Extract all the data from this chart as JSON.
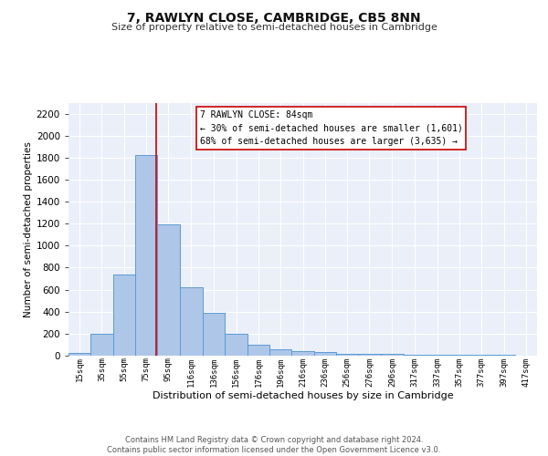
{
  "title": "7, RAWLYN CLOSE, CAMBRIDGE, CB5 8NN",
  "subtitle": "Size of property relative to semi-detached houses in Cambridge",
  "xlabel": "Distribution of semi-detached houses by size in Cambridge",
  "ylabel": "Number of semi-detached properties",
  "bar_labels": [
    "15sqm",
    "35sqm",
    "55sqm",
    "75sqm",
    "95sqm",
    "116sqm",
    "136sqm",
    "156sqm",
    "176sqm",
    "196sqm",
    "216sqm",
    "236sqm",
    "256sqm",
    "276sqm",
    "296sqm",
    "317sqm",
    "337sqm",
    "357sqm",
    "377sqm",
    "397sqm",
    "417sqm"
  ],
  "bar_values": [
    25,
    195,
    740,
    1820,
    1195,
    625,
    390,
    200,
    100,
    60,
    40,
    30,
    20,
    15,
    15,
    10,
    10,
    10,
    5,
    5,
    0
  ],
  "bar_color": "#aec6e8",
  "bar_edge_color": "#5b9bd5",
  "background_color": "#eaeff9",
  "grid_color": "#ffffff",
  "annotation_text": "7 RAWLYN CLOSE: 84sqm\n← 30% of semi-detached houses are smaller (1,601)\n68% of semi-detached houses are larger (3,635) →",
  "annotation_box_color": "#ffffff",
  "annotation_box_edge": "#cc0000",
  "vline_x": 84,
  "vline_color": "#cc0000",
  "ylim": [
    0,
    2300
  ],
  "yticks": [
    0,
    200,
    400,
    600,
    800,
    1000,
    1200,
    1400,
    1600,
    1800,
    2000,
    2200
  ],
  "footer": "Contains HM Land Registry data © Crown copyright and database right 2024.\nContains public sector information licensed under the Open Government Licence v3.0.",
  "bin_edges": [
    5,
    25,
    45,
    65,
    85,
    105,
    126,
    146,
    166,
    186,
    206,
    226,
    246,
    266,
    286,
    307,
    327,
    347,
    367,
    387,
    407,
    427
  ]
}
